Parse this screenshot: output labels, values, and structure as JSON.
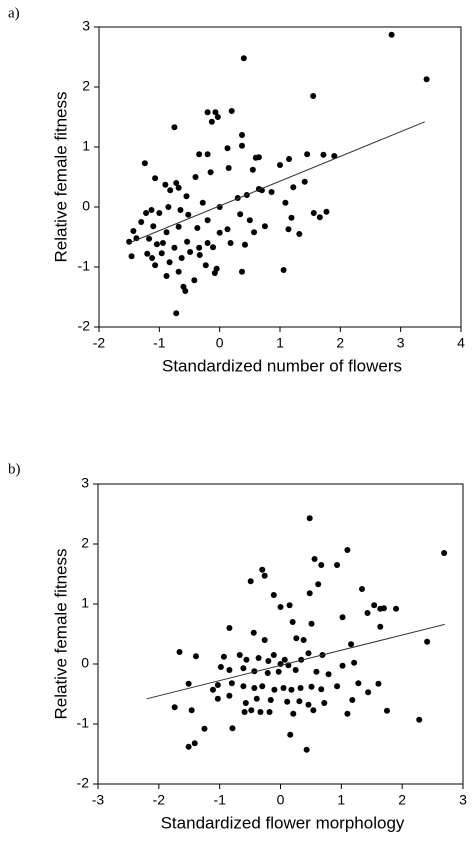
{
  "chart_data": [
    {
      "type": "scatter",
      "panel_label": "a)",
      "x_label": "Standardized number of flowers",
      "y_label": "Relative female fitness",
      "color": "#000000",
      "xlim": [
        -2,
        4
      ],
      "ylim": [
        -2,
        3
      ],
      "xticks": [
        -2,
        -1,
        0,
        1,
        2,
        3,
        4
      ],
      "yticks": [
        -2,
        -1,
        0,
        1,
        2,
        3
      ],
      "x": [
        2.85,
        3.43,
        0.4,
        1.55,
        1.9,
        -0.75,
        -0.2,
        -0.07,
        0.2,
        -0.13,
        -0.03,
        0.37,
        0.13,
        -0.34,
        -0.2,
        0.37,
        0.6,
        0.65,
        1.0,
        1.15,
        1.45,
        1.72,
        -1.24,
        -1.07,
        -0.9,
        -0.72,
        -0.82,
        -0.68,
        -0.4,
        -0.15,
        0.15,
        0.55,
        0.65,
        0.7,
        0.86,
        1.22,
        1.41,
        0.45,
        0.3,
        0,
        -0.28,
        -0.55,
        -0.65,
        -0.85,
        -1.0,
        -1.13,
        -1.22,
        -1.3,
        -1.1,
        -0.88,
        -0.68,
        -0.52,
        -0.37,
        -0.2,
        0,
        0.13,
        0.34,
        0.5,
        0.57,
        0.75,
        1.09,
        1.19,
        1.14,
        1.32,
        1.56,
        1.66,
        1.77,
        -1.43,
        -1.5,
        -1.38,
        -1.17,
        -1.04,
        -0.94,
        -0.75,
        -0.54,
        -0.34,
        -0.2,
        -0.11,
        0.18,
        0.42,
        -1.46,
        -1.12,
        -1.2,
        -0.96,
        -0.83,
        -0.63,
        -0.49,
        -0.33,
        -0.23,
        -0.05,
        -0.08,
        0.37,
        1.06,
        -1.07,
        -0.88,
        -0.68,
        -0.42,
        -0.6,
        -0.57,
        -0.72
      ],
      "y": [
        2.87,
        2.13,
        2.48,
        1.85,
        0.85,
        1.33,
        1.58,
        1.58,
        1.6,
        1.42,
        1.5,
        1.2,
        0.98,
        0.88,
        0.88,
        1.02,
        0.82,
        0.83,
        0.7,
        0.8,
        0.88,
        0.87,
        0.73,
        0.48,
        0.37,
        0.4,
        0.28,
        0.32,
        0.5,
        0.58,
        0.65,
        0.62,
        0.3,
        0.28,
        0.25,
        0.33,
        0.42,
        0.2,
        0.15,
        0,
        0.07,
        0.18,
        -0.05,
        0,
        -0.1,
        -0.05,
        -0.1,
        -0.25,
        -0.32,
        -0.42,
        -0.33,
        -0.13,
        -0.35,
        -0.22,
        -0.43,
        -0.37,
        -0.12,
        -0.22,
        -0.42,
        -0.32,
        0.07,
        -0.18,
        -0.37,
        -0.45,
        -0.1,
        -0.17,
        -0.08,
        -0.4,
        -0.58,
        -0.52,
        -0.53,
        -0.62,
        -0.6,
        -0.68,
        -0.58,
        -0.68,
        -0.6,
        -0.67,
        -0.6,
        -0.63,
        -0.82,
        -0.85,
        -0.78,
        -0.77,
        -0.92,
        -0.85,
        -0.75,
        -0.8,
        -0.97,
        -1.03,
        -1.1,
        -1.08,
        -1.05,
        -0.97,
        -1.15,
        -1.08,
        -1.22,
        -1.33,
        -1.4,
        -1.77
      ],
      "fit_line": {
        "x": [
          -1.5,
          3.4
        ],
        "y": [
          -0.6,
          1.42
        ]
      }
    },
    {
      "type": "scatter",
      "panel_label": "b)",
      "x_label": "Standardized flower morphology",
      "y_label": "Relative female fitness",
      "color": "#000000",
      "xlim": [
        -3,
        3
      ],
      "ylim": [
        -2,
        3
      ],
      "xticks": [
        -3,
        -2,
        -1,
        0,
        1,
        2,
        3
      ],
      "yticks": [
        -2,
        -1,
        0,
        1,
        2,
        3
      ],
      "x": [
        0.48,
        2.69,
        1.1,
        0.56,
        0.67,
        0.93,
        -0.3,
        -0.26,
        -0.49,
        0.62,
        -0.11,
        1.34,
        0.48,
        0,
        0.15,
        1.54,
        1.7,
        1.64,
        1.9,
        1.43,
        1.02,
        -0.84,
        0.2,
        0.51,
        -0.44,
        -0.26,
        0.26,
        0.38,
        1.16,
        1.64,
        -1.66,
        -1.39,
        -0.93,
        -0.67,
        -0.56,
        -0.36,
        -0.2,
        -0.11,
        0.07,
        0,
        0.13,
        0.34,
        0.46,
        0.69,
        -0.98,
        -0.84,
        -0.61,
        -0.43,
        -0.21,
        -0.03,
        0.25,
        0.59,
        0.79,
        1.02,
        1.21,
        -1.51,
        -1.11,
        -1.03,
        -0.8,
        -0.61,
        -0.43,
        -0.3,
        -0.1,
        0.05,
        0.18,
        0.33,
        0.51,
        0.67,
        0.93,
        1.28,
        1.44,
        1.61,
        -1.03,
        -0.84,
        -0.57,
        -0.39,
        -0.16,
        0.11,
        0.31,
        0.46,
        0.54,
        0.72,
        1.18,
        -0.59,
        -0.48,
        -0.33,
        -0.18,
        -1.46,
        -1.74,
        0.21,
        1.1,
        1.75,
        -0.79,
        -1.25,
        0.16,
        0.43,
        2.28,
        -1.41,
        -1.51,
        2.41
      ],
      "y": [
        2.43,
        1.85,
        1.9,
        1.75,
        1.65,
        1.65,
        1.57,
        1.47,
        1.38,
        1.33,
        1.15,
        1.25,
        1.18,
        0.95,
        0.98,
        0.98,
        0.93,
        0.92,
        0.92,
        0.85,
        0.78,
        0.6,
        0.7,
        0.67,
        0.52,
        0.4,
        0.43,
        0.4,
        0.33,
        0.62,
        0.2,
        0.13,
        0.12,
        0.15,
        0.07,
        0.1,
        0.05,
        0.15,
        0.07,
        0,
        -0.02,
        0.07,
        0.18,
        0.15,
        -0.05,
        -0.1,
        -0.07,
        -0.12,
        -0.15,
        -0.13,
        -0.1,
        -0.13,
        -0.17,
        -0.03,
        0.02,
        -0.33,
        -0.43,
        -0.35,
        -0.32,
        -0.37,
        -0.4,
        -0.37,
        -0.43,
        -0.4,
        -0.43,
        -0.4,
        -0.38,
        -0.42,
        -0.37,
        -0.32,
        -0.47,
        -0.33,
        -0.58,
        -0.53,
        -0.65,
        -0.58,
        -0.6,
        -0.63,
        -0.62,
        -0.68,
        -0.77,
        -0.65,
        -0.6,
        -0.8,
        -0.77,
        -0.8,
        -0.8,
        -0.77,
        -0.72,
        -0.83,
        -0.83,
        -0.78,
        -1.07,
        -1.08,
        -1.18,
        -1.43,
        -0.93,
        -1.32,
        -1.38,
        0.37
      ],
      "fit_line": {
        "x": [
          -2.2,
          2.7
        ],
        "y": [
          -0.58,
          0.66
        ]
      }
    }
  ]
}
